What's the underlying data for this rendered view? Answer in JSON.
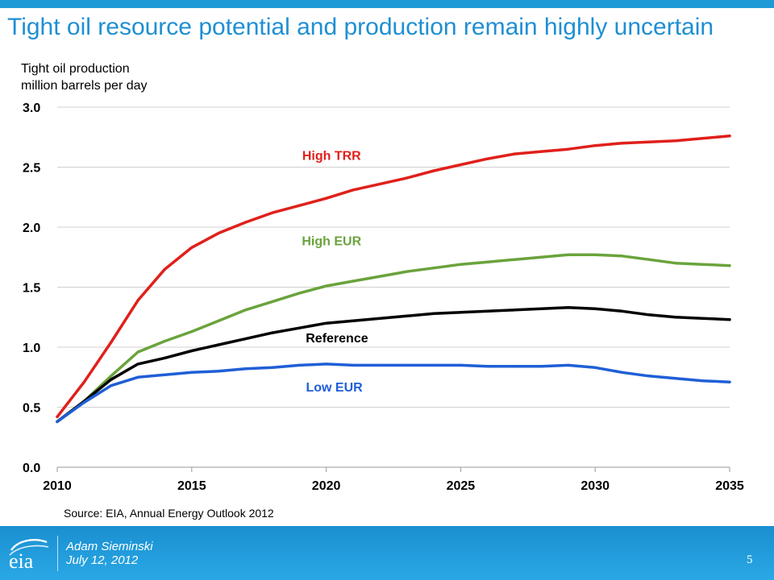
{
  "slide": {
    "title": "Tight oil resource potential and production remain highly uncertain",
    "source": "Source:  EIA, Annual Energy Outlook 2012"
  },
  "footer": {
    "presenter": "Adam Sieminski",
    "date": "July 12, 2012",
    "page_number": "5",
    "logo_text": "eia"
  },
  "colors": {
    "title": "#1f8fd3",
    "footer_bg": "#2196d8",
    "high_trr": "#e0201b",
    "high_eur": "#6aa33c",
    "reference": "#000000",
    "low_eur": "#1f5fd6"
  },
  "chart_data": {
    "type": "line",
    "title": "",
    "ylabel_line1": "Tight oil production",
    "ylabel_line2": "million barrels per day",
    "xlabel": "",
    "xlim": [
      2010,
      2035
    ],
    "ylim": [
      0,
      3.0
    ],
    "x_ticks": [
      "2010",
      "2015",
      "2020",
      "2025",
      "2030",
      "2035"
    ],
    "y_ticks": [
      "0.0",
      "0.5",
      "1.0",
      "1.5",
      "2.0",
      "2.5",
      "3.0"
    ],
    "grid": true,
    "x": [
      2010,
      2011,
      2012,
      2013,
      2014,
      2015,
      2016,
      2017,
      2018,
      2019,
      2020,
      2021,
      2022,
      2023,
      2024,
      2025,
      2026,
      2027,
      2028,
      2029,
      2030,
      2031,
      2032,
      2033,
      2034,
      2035
    ],
    "series": [
      {
        "name": "High TRR",
        "color": "#e0201b",
        "values": [
          0.42,
          0.71,
          1.04,
          1.39,
          1.65,
          1.83,
          1.95,
          2.04,
          2.12,
          2.18,
          2.24,
          2.31,
          2.36,
          2.41,
          2.47,
          2.52,
          2.57,
          2.61,
          2.63,
          2.65,
          2.68,
          2.7,
          2.71,
          2.72,
          2.74,
          2.76
        ]
      },
      {
        "name": "High EUR",
        "color": "#6aa33c",
        "values": [
          0.38,
          0.55,
          0.76,
          0.96,
          1.05,
          1.13,
          1.22,
          1.31,
          1.38,
          1.45,
          1.51,
          1.55,
          1.59,
          1.63,
          1.66,
          1.69,
          1.71,
          1.73,
          1.75,
          1.77,
          1.77,
          1.76,
          1.73,
          1.7,
          1.69,
          1.68
        ]
      },
      {
        "name": "Reference",
        "color": "#000000",
        "values": [
          0.38,
          0.55,
          0.73,
          0.86,
          0.91,
          0.97,
          1.02,
          1.07,
          1.12,
          1.16,
          1.2,
          1.22,
          1.24,
          1.26,
          1.28,
          1.29,
          1.3,
          1.31,
          1.32,
          1.33,
          1.32,
          1.3,
          1.27,
          1.25,
          1.24,
          1.23
        ]
      },
      {
        "name": "Low EUR",
        "color": "#1f5fd6",
        "values": [
          0.38,
          0.54,
          0.68,
          0.75,
          0.77,
          0.79,
          0.8,
          0.82,
          0.83,
          0.85,
          0.86,
          0.85,
          0.85,
          0.85,
          0.85,
          0.85,
          0.84,
          0.84,
          0.84,
          0.85,
          0.83,
          0.79,
          0.76,
          0.74,
          0.72,
          0.71
        ]
      }
    ],
    "annotations": [
      {
        "text": "High TRR",
        "series": "High TRR",
        "x": 2020.2,
        "y": 2.56
      },
      {
        "text": "High EUR",
        "series": "High EUR",
        "x": 2020.2,
        "y": 1.85
      },
      {
        "text": "Reference",
        "series": "Reference",
        "x": 2020.4,
        "y": 1.04
      },
      {
        "text": "Low EUR",
        "series": "Low EUR",
        "x": 2020.3,
        "y": 0.63
      }
    ]
  }
}
